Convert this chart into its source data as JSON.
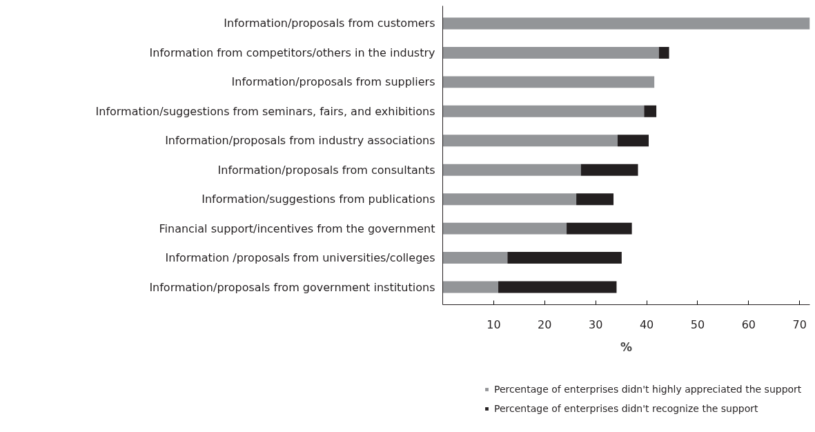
{
  "chart_data": {
    "type": "bar",
    "orientation": "horizontal",
    "stacked": true,
    "xlabel": "%",
    "categories": [
      "Information/proposals from customers",
      "Information from competitors/others in the industry",
      "Information/proposals from suppliers",
      "Information/suggestions from seminars, fairs, and exhibitions",
      "Information/proposals from industry associations",
      "Information/proposals from consultants",
      "Information/suggestions from publications",
      "Financial support/incentives from the government",
      "Information /proposals from universities/colleges",
      "Information/proposals from government institutions"
    ],
    "series": [
      {
        "name": "Percentage of enterprises didn't highly appreciated the support",
        "color": "#939598",
        "values": [
          72.0,
          42.4,
          41.5,
          39.5,
          34.3,
          27.1,
          26.2,
          24.3,
          12.7,
          10.9
        ]
      },
      {
        "name": "Percentage of enterprises didn't recognize the support",
        "color": "#231f20",
        "values": [
          0,
          2.0,
          0,
          2.4,
          6.1,
          11.2,
          7.3,
          12.8,
          22.4,
          23.2
        ]
      }
    ],
    "xlim": [
      0,
      72
    ],
    "xticks": [
      10,
      20,
      30,
      40,
      50,
      60,
      70
    ],
    "grid": false,
    "legend": "bottom"
  }
}
